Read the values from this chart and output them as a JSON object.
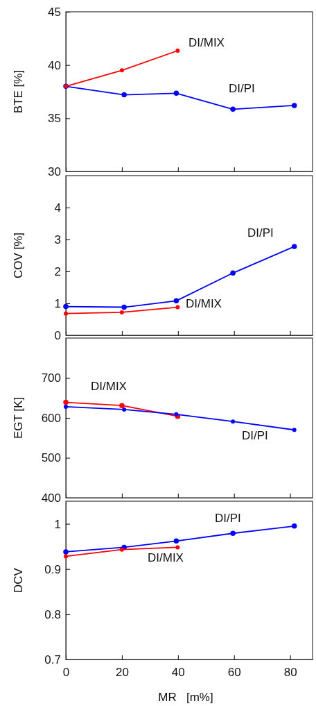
{
  "chart_data": [
    {
      "type": "line",
      "ylabel": "BTE [%]",
      "xlim": [
        0,
        88
      ],
      "xticks": [
        0,
        20,
        40,
        60,
        80
      ],
      "ylim": [
        30,
        45
      ],
      "yticks": [
        30,
        35,
        40,
        45
      ],
      "tick_labels": "y",
      "marker": "circle",
      "line_style": "solid",
      "grid": false,
      "series": [
        {
          "name": "DI/PI",
          "color": "#0000ff",
          "x": [
            0,
            20.8,
            39.4,
            59.6,
            81.5
          ],
          "values": [
            38.0,
            37.2,
            37.35,
            35.85,
            36.2
          ]
        },
        {
          "name": "DI/MIX",
          "color": "#ff0000",
          "x": [
            0,
            20,
            39.9
          ],
          "values": [
            38.0,
            39.5,
            41.35
          ]
        }
      ]
    },
    {
      "type": "line",
      "ylabel": "COV [%]",
      "xlim": [
        0,
        88
      ],
      "xticks": [
        0,
        20,
        40,
        60,
        80
      ],
      "ylim": [
        0,
        5
      ],
      "yticks": [
        0,
        1,
        2,
        3,
        4
      ],
      "tick_labels": "y",
      "marker": "circle",
      "line_style": "solid",
      "grid": false,
      "series": [
        {
          "name": "DI/PI",
          "color": "#0000ff",
          "x": [
            0,
            20.8,
            39.4,
            59.6,
            81.5
          ],
          "values": [
            0.9,
            0.88,
            1.08,
            1.95,
            2.78
          ]
        },
        {
          "name": "DI/MIX",
          "color": "#ff0000",
          "x": [
            0,
            20,
            39.9
          ],
          "values": [
            0.68,
            0.72,
            0.88
          ]
        }
      ]
    },
    {
      "type": "line",
      "ylabel": "EGT [K]",
      "xlim": [
        0,
        88
      ],
      "xticks": [
        0,
        20,
        40,
        60,
        80
      ],
      "ylim": [
        400,
        800
      ],
      "yticks": [
        400,
        500,
        600,
        700
      ],
      "tick_labels": "y",
      "marker": "circle",
      "line_style": "solid",
      "grid": false,
      "series": [
        {
          "name": "DI/MIX",
          "color": "#ff0000",
          "x": [
            0,
            20,
            39.9
          ],
          "values": [
            639,
            631,
            604
          ]
        },
        {
          "name": "DI/PI",
          "color": "#0000ff",
          "x": [
            0,
            20.8,
            39.4,
            59.6,
            81.5
          ],
          "values": [
            628,
            621,
            609,
            591,
            570
          ]
        }
      ]
    },
    {
      "type": "line",
      "xlabel": "MR   [m%]",
      "ylabel": "DCV",
      "xlim": [
        0,
        88
      ],
      "xticks": [
        0,
        20,
        40,
        60,
        80
      ],
      "ylim": [
        0.7,
        1.05
      ],
      "yticks": [
        0.7,
        0.8,
        0.9,
        {
          "value": 1,
          "label": "1"
        }
      ],
      "marker": "circle",
      "line_style": "solid",
      "grid": false,
      "series": [
        {
          "name": "DI/PI",
          "color": "#0000ff",
          "x": [
            0,
            20.8,
            39.4,
            59.6,
            81.5
          ],
          "values": [
            0.938,
            0.948,
            0.962,
            0.979,
            0.995
          ]
        },
        {
          "name": "DI/MIX",
          "color": "#ff0000",
          "x": [
            0,
            20,
            39.9
          ],
          "values": [
            0.928,
            0.943,
            0.948
          ]
        }
      ]
    }
  ]
}
